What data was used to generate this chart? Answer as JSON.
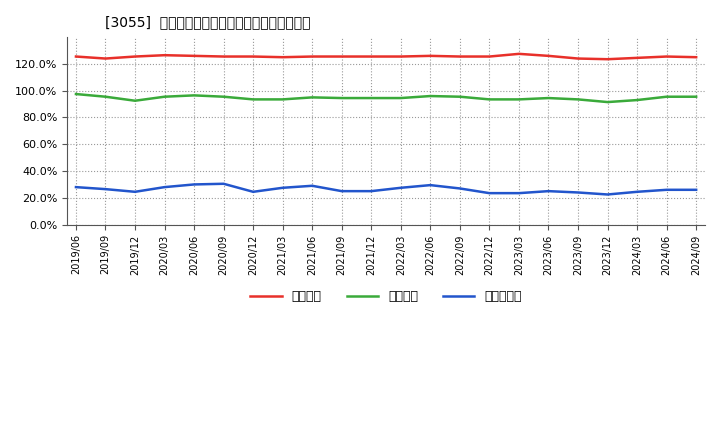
{
  "title": "[3055]  流動比率、当座比率、現預金比率の推移",
  "x_labels": [
    "2019/06",
    "2019/09",
    "2019/12",
    "2020/03",
    "2020/06",
    "2020/09",
    "2020/12",
    "2021/03",
    "2021/06",
    "2021/09",
    "2021/12",
    "2022/03",
    "2022/06",
    "2022/09",
    "2022/12",
    "2023/03",
    "2023/06",
    "2023/09",
    "2023/12",
    "2024/03",
    "2024/06",
    "2024/09"
  ],
  "current_ratio": [
    125.5,
    124.0,
    125.5,
    126.5,
    126.0,
    125.5,
    125.5,
    125.0,
    125.5,
    125.5,
    125.5,
    125.5,
    126.0,
    125.5,
    125.5,
    127.5,
    126.0,
    124.0,
    123.5,
    124.5,
    125.5,
    125.0
  ],
  "quick_ratio": [
    97.5,
    95.5,
    92.5,
    95.5,
    96.5,
    95.5,
    93.5,
    93.5,
    95.0,
    94.5,
    94.5,
    94.5,
    96.0,
    95.5,
    93.5,
    93.5,
    94.5,
    93.5,
    91.5,
    93.0,
    95.5,
    95.5
  ],
  "cash_ratio": [
    28.0,
    26.5,
    24.5,
    28.0,
    30.0,
    30.5,
    24.5,
    27.5,
    29.0,
    25.0,
    25.0,
    27.5,
    29.5,
    27.0,
    23.5,
    23.5,
    25.0,
    24.0,
    22.5,
    24.5,
    26.0,
    26.0
  ],
  "current_ratio_color": "#e8302a",
  "quick_ratio_color": "#3aaa3a",
  "cash_ratio_color": "#2255cc",
  "legend_labels": [
    "流動比率",
    "当座比率",
    "現預金比率"
  ],
  "ylim": [
    0,
    140
  ],
  "yticks": [
    0,
    20,
    40,
    60,
    80,
    100,
    120
  ],
  "background_color": "#ffffff",
  "grid_color": "#aaaaaa",
  "plot_bg_color": "#e8e8e8"
}
